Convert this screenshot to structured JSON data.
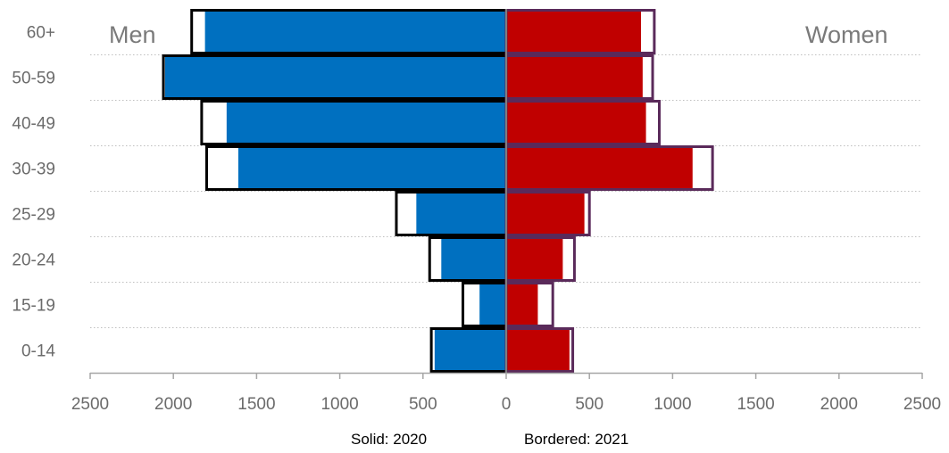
{
  "chart_data": {
    "type": "bar",
    "orientation": "horizontal",
    "categories": [
      "60+",
      "50-59",
      "40-49",
      "30-39",
      "25-29",
      "20-24",
      "15-19",
      "0-14"
    ],
    "x_tick_labels": [
      "2500",
      "2000",
      "1500",
      "1000",
      "500",
      "0",
      "500",
      "1000",
      "1500",
      "2000",
      "2500"
    ],
    "xlim": [
      -2500,
      2500
    ],
    "grid": "horizontal dotted",
    "side_labels": {
      "left": "Men",
      "right": "Women"
    },
    "footer": {
      "left": "Solid: 2020",
      "right": "Bordered: 2021"
    },
    "series": [
      {
        "sex": "Men",
        "year": "2020",
        "style": "solid",
        "values": [
          1810,
          2050,
          1680,
          1610,
          540,
          390,
          160,
          430
        ]
      },
      {
        "sex": "Men",
        "year": "2021",
        "style": "bordered",
        "values": [
          1890,
          2060,
          1830,
          1800,
          660,
          460,
          260,
          450
        ]
      },
      {
        "sex": "Women",
        "year": "2020",
        "style": "solid",
        "values": [
          810,
          820,
          840,
          1120,
          470,
          340,
          190,
          380
        ]
      },
      {
        "sex": "Women",
        "year": "2021",
        "style": "bordered",
        "values": [
          890,
          880,
          920,
          1240,
          500,
          410,
          280,
          400
        ]
      }
    ],
    "colors": {
      "men_fill": "#0070c0",
      "women_fill": "#c00000",
      "men_border": "#000000",
      "women_border": "#5a2a5a",
      "axis": "#a6a6a6",
      "grid": "#bfbfbf",
      "zero_line": "#7f7f7f"
    }
  }
}
